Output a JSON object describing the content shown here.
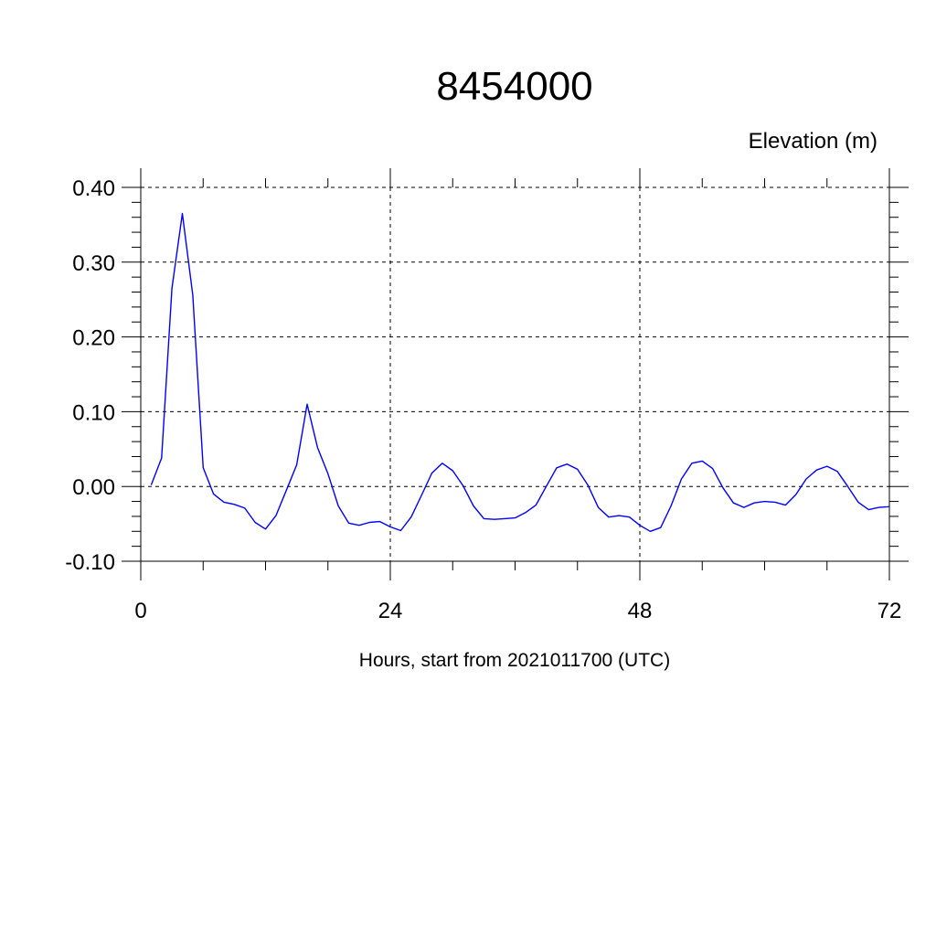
{
  "chart_data": {
    "type": "line",
    "title": "8454000",
    "subtitle": "Elevation (m)",
    "xlabel": "Hours, start from 2021011700 (UTC)",
    "ylabel": "",
    "xlim": [
      0,
      72
    ],
    "ylim": [
      -0.1,
      0.4
    ],
    "x_ticks": [
      0,
      24,
      48,
      72
    ],
    "x_tick_labels": [
      "0",
      "24",
      "48",
      "72"
    ],
    "y_ticks": [
      -0.1,
      0.0,
      0.1,
      0.2,
      0.3,
      0.4
    ],
    "y_tick_labels": [
      "-0.10",
      "0.00",
      "0.10",
      "0.20",
      "0.30",
      "0.40"
    ],
    "grid": "dashed, at major ticks",
    "legend": "none",
    "series": [
      {
        "color": "#0000ff",
        "x": [
          1,
          2,
          3,
          4,
          5,
          6,
          7,
          8,
          9,
          10,
          11,
          12,
          13,
          14,
          15,
          16,
          17,
          18,
          19,
          20,
          21,
          22,
          23,
          24,
          25,
          26,
          27,
          28,
          29,
          30,
          31,
          32,
          33,
          34,
          35,
          36,
          37,
          38,
          39,
          40,
          41,
          42,
          43,
          44,
          45,
          46,
          47,
          48,
          49,
          50,
          51,
          52,
          53,
          54,
          55,
          56,
          57,
          58,
          59,
          60,
          61,
          62,
          63,
          64,
          65,
          66,
          67,
          68,
          69,
          70,
          71,
          72
        ],
        "values": [
          0.002,
          0.038,
          0.265,
          0.365,
          0.256,
          0.025,
          -0.01,
          -0.021,
          -0.024,
          -0.029,
          -0.048,
          -0.057,
          -0.039,
          -0.005,
          0.029,
          0.11,
          0.052,
          0.017,
          -0.026,
          -0.049,
          -0.052,
          -0.048,
          -0.047,
          -0.054,
          -0.059,
          -0.041,
          -0.012,
          0.018,
          0.031,
          0.021,
          0.001,
          -0.026,
          -0.043,
          -0.044,
          -0.043,
          -0.042,
          -0.035,
          -0.025,
          0.0,
          0.025,
          0.03,
          0.023,
          0.002,
          -0.028,
          -0.041,
          -0.039,
          -0.041,
          -0.052,
          -0.06,
          -0.055,
          -0.026,
          0.01,
          0.031,
          0.034,
          0.024,
          -0.002,
          -0.022,
          -0.028,
          -0.022,
          -0.02,
          -0.021,
          -0.025,
          -0.011,
          0.01,
          0.022,
          0.027,
          0.02,
          0.0,
          -0.021,
          -0.031,
          -0.028,
          -0.027
        ]
      }
    ]
  }
}
